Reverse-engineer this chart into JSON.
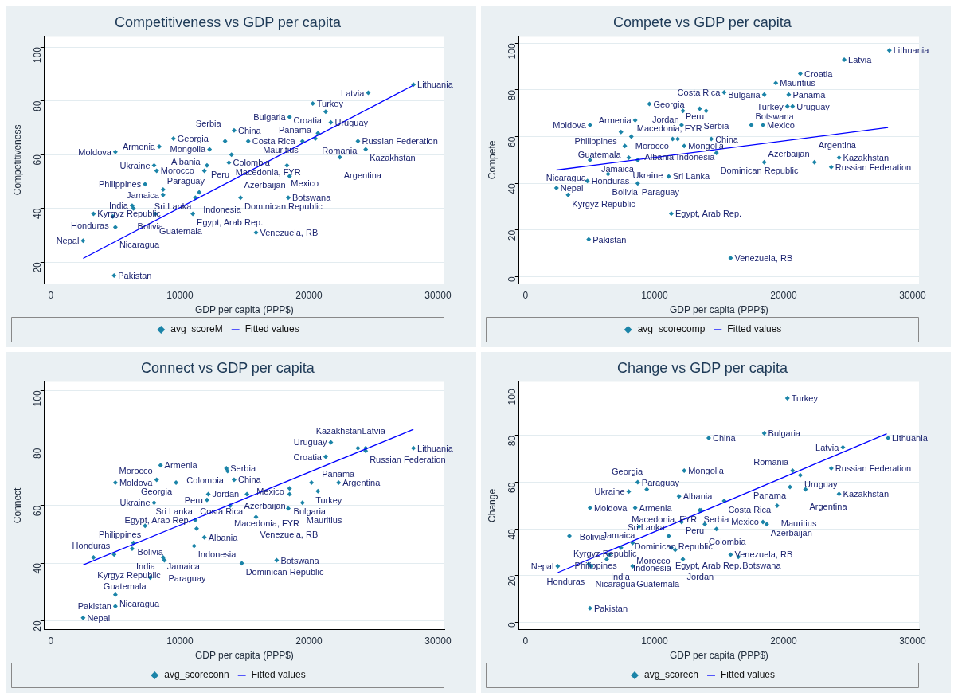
{
  "chart_data": [
    {
      "type": "scatter",
      "title": "Competitiveness vs GDP per capita",
      "xlabel": "GDP per capita (PPP$)",
      "ylabel": "Competitiveness",
      "xlim": [
        -500,
        30500
      ],
      "ylim": [
        12,
        104
      ],
      "xticks": [
        0,
        10000,
        20000,
        30000
      ],
      "yticks": [
        20,
        40,
        60,
        80,
        100
      ],
      "grid": "y",
      "legend": "bottom",
      "series": [
        {
          "name": "avg_scoreM",
          "color": "#1b84a8",
          "marker": "diamond",
          "x": [
            28100,
            24600,
            20300,
            21300,
            18500,
            21700,
            14200,
            20700,
            9500,
            13500,
            15300,
            20500,
            19500,
            23800,
            8400,
            5000,
            12300,
            24400,
            14000,
            22400,
            8000,
            12100,
            13800,
            18300,
            8200,
            11900,
            18500,
            7300,
            8700,
            11500,
            8700,
            11200,
            14700,
            18400,
            6300,
            6400,
            3300,
            4800,
            8100,
            11000,
            5000,
            15900,
            2500,
            4900
          ],
          "values": [
            86,
            83,
            79,
            76,
            74,
            72,
            69,
            68,
            66,
            65,
            65,
            66,
            65,
            65,
            63,
            61,
            62,
            62,
            60,
            59,
            56,
            56,
            57,
            56,
            54,
            54,
            52,
            49,
            47,
            46,
            45,
            44,
            44,
            44,
            41,
            40,
            38,
            37,
            38,
            38,
            33,
            31,
            28,
            15
          ],
          "value_labels": [
            "Lithuania",
            "Latvia",
            "Turkey",
            "Croatia",
            "Bulgaria",
            "Uruguay",
            "China",
            "Romania",
            "Georgia",
            "Serbia",
            "Costa Rica",
            "Panama",
            "Mauritius",
            "Russian Federation",
            "Armenia",
            "Moldova",
            "Mongolia",
            "Kazakhstan",
            "Macedonia, FYR",
            "Argentina",
            "Ukraine",
            "Peru",
            "Colombia",
            "Mexico",
            "Morocco",
            "Albania",
            "Azerbaijan",
            "Philippines",
            "Paraguay",
            "Indonesia",
            "Jamaica",
            "Sri Lanka",
            "Dominican Republic",
            "Botswana",
            "India",
            "Bolivia",
            "Kyrgyz Republic",
            "Honduras",
            "Guatemala",
            "Egypt, Arab Rep.",
            "Nicaragua",
            "Venezuela, RB",
            "Nepal",
            "Pakistan"
          ]
        },
        {
          "type": "line",
          "name": "Fitted values",
          "color": "#0000ff",
          "line_style": "solid",
          "x": [
            2500,
            28100
          ],
          "values": [
            21.4,
            85.8
          ]
        }
      ]
    },
    {
      "type": "scatter",
      "title": "Compete vs GDP per capita",
      "xlabel": "GDP per capita (PPP$)",
      "ylabel": "Compete",
      "xlim": [
        -500,
        30500
      ],
      "ylim": [
        -3,
        103
      ],
      "xticks": [
        0,
        10000,
        20000,
        30000
      ],
      "yticks": [
        0,
        20,
        40,
        60,
        80,
        100
      ],
      "grid": "y",
      "legend": "bottom",
      "series": [
        {
          "name": "avg_scorecomp",
          "color": "#1b84a8",
          "marker": "diamond",
          "x": [
            28200,
            24700,
            21300,
            19400,
            15400,
            18500,
            20400,
            9600,
            20300,
            20700,
            13500,
            12200,
            14000,
            8500,
            5000,
            12100,
            17500,
            18400,
            7400,
            8200,
            11400,
            14400,
            11800,
            7700,
            12300,
            14800,
            8000,
            5000,
            8700,
            18500,
            22400,
            24300,
            23700,
            6400,
            11100,
            4800,
            8700,
            2400,
            3300,
            11300,
            4900,
            15900
          ],
          "values": [
            97,
            93,
            87,
            83,
            79,
            78,
            78,
            74,
            73,
            73,
            72,
            71,
            71,
            67,
            65,
            65,
            65,
            65,
            62,
            60,
            59,
            59,
            59,
            56,
            56,
            53,
            51,
            50,
            50,
            49,
            49,
            51,
            47,
            44,
            43,
            41,
            40,
            38,
            35,
            27,
            16,
            8
          ],
          "value_labels": [
            "Lithuania",
            "Latvia",
            "Croatia",
            "Mauritius",
            "Costa Rica",
            "Bulgaria",
            "Panama",
            "Georgia",
            "Turkey",
            "Uruguay",
            "Serbia",
            "Jordan",
            "Macedonia, FYR",
            "Armenia",
            "Moldova",
            "Peru",
            "Botswana",
            "Mexico",
            "Philippines",
            "Morocco",
            "Indonesia",
            "China",
            "Albania",
            "Guatemala",
            "Mongolia",
            "Dominican Republic",
            "Ukraine",
            "Nicaragua",
            "Jamaica",
            "Azerbaijan",
            "Argentina",
            "Kazakhstan",
            "Russian Federation",
            "Bolivia",
            "Sri Lanka",
            "Honduras",
            "Paraguay",
            "Nepal",
            "Kyrgyz Republic",
            "Egypt, Arab Rep.",
            "Pakistan",
            "Venezuela, RB"
          ]
        },
        {
          "type": "line",
          "name": "Fitted values",
          "color": "#0000ff",
          "line_style": "solid",
          "x": [
            2400,
            28100
          ],
          "values": [
            45.7,
            63.9
          ]
        }
      ]
    },
    {
      "type": "scatter",
      "title": "Connect vs GDP per capita",
      "xlabel": "GDP per capita (PPP$)",
      "ylabel": "Connect",
      "xlim": [
        -500,
        30500
      ],
      "ylim": [
        17,
        103
      ],
      "xticks": [
        0,
        10000,
        20000,
        30000
      ],
      "yticks": [
        20,
        40,
        60,
        80,
        100
      ],
      "grid": "y",
      "legend": "bottom",
      "series": [
        {
          "name": "avg_scoreconn",
          "color": "#1b84a8",
          "marker": "diamond",
          "x": [
            21700,
            23800,
            24400,
            28100,
            24400,
            21300,
            8500,
            13600,
            13700,
            5000,
            8200,
            9700,
            14200,
            20200,
            22300,
            18500,
            20700,
            12200,
            12100,
            15200,
            18500,
            8000,
            13900,
            18400,
            19500,
            15900,
            11200,
            7300,
            11300,
            11900,
            6400,
            6300,
            4900,
            11100,
            3300,
            8700,
            8800,
            14800,
            17500,
            7700,
            5000,
            5000,
            2500
          ],
          "values": [
            82,
            80,
            79,
            80,
            80,
            77,
            74,
            73,
            72,
            68,
            69,
            68,
            69,
            68,
            68,
            66,
            65,
            64,
            62,
            64,
            64,
            61,
            60,
            59,
            61,
            56,
            55,
            53,
            52,
            49,
            47,
            45,
            43,
            46,
            42,
            42,
            41,
            40,
            41,
            35,
            29,
            25,
            21
          ],
          "value_labels": [
            "Uruguay",
            "Latvia",
            "Russian Federation",
            "Lithuania",
            "Kazakhstan",
            "Croatia",
            "Armenia",
            "Serbia",
            "Colombia",
            "Moldova",
            "Morocco",
            "Georgia",
            "China",
            "Turkey",
            "Argentina",
            "Azerbaijan",
            "Panama",
            "Jordan",
            "Peru",
            "Costa Rica",
            "Bulgaria",
            "Ukraine",
            "Macedonia, FYR",
            "Mexico",
            "Mauritius",
            "Venezuela, RB",
            "Egypt, Arab Rep.",
            "Philippines",
            "Sri Lanka",
            "Albania",
            "Bolivia",
            "India",
            "Honduras",
            "Indonesia",
            "Kyrgyz Republic",
            "Jamaica",
            "Paraguay",
            "Dominican Republic",
            "Botswana",
            "Guatemala",
            "Nicaragua",
            "Pakistan",
            "Nepal"
          ]
        },
        {
          "type": "line",
          "name": "Fitted values",
          "color": "#0000ff",
          "line_style": "solid",
          "x": [
            2500,
            28100
          ],
          "values": [
            39.4,
            86.5
          ]
        }
      ]
    },
    {
      "type": "scatter",
      "title": "Change vs GDP per capita",
      "xlabel": "GDP per capita (PPP$)",
      "ylabel": "Change",
      "xlim": [
        -500,
        30500
      ],
      "ylim": [
        -3,
        103
      ],
      "xticks": [
        0,
        10000,
        20000,
        30000
      ],
      "yticks": [
        0,
        20,
        40,
        60,
        80,
        100
      ],
      "grid": "y",
      "legend": "bottom",
      "series": [
        {
          "name": "avg_scorech",
          "color": "#1b84a8",
          "marker": "diamond",
          "x": [
            20300,
            18500,
            14200,
            28100,
            24600,
            23700,
            12300,
            20700,
            21300,
            8700,
            20500,
            21700,
            24300,
            8000,
            9400,
            11900,
            15400,
            19500,
            5000,
            8500,
            13600,
            13500,
            8800,
            12100,
            13900,
            18400,
            18700,
            14800,
            3400,
            11100,
            8300,
            11300,
            11600,
            7400,
            6500,
            6300,
            12200,
            15900,
            16500,
            4900,
            2500,
            8300,
            5100,
            5000
          ],
          "values": [
            96,
            81,
            79,
            79,
            75,
            66,
            65,
            65,
            63,
            60,
            58,
            57,
            55,
            56,
            57,
            54,
            52,
            50,
            49,
            49,
            48,
            48,
            41,
            43,
            42,
            43,
            42,
            40,
            37,
            37,
            34,
            32,
            31,
            32,
            29,
            27,
            27,
            29,
            28,
            25,
            24,
            24,
            24,
            6
          ],
          "value_labels": [
            "Turkey",
            "Bulgaria",
            "China",
            "Lithuania",
            "Latvia",
            "Russian Federation",
            "Mongolia",
            "Romania",
            "Uruguay",
            "Paraguay",
            "Panama",
            "Argentina",
            "Kazakhstan",
            "Ukraine",
            "Georgia",
            "Albania",
            "Costa Rica",
            "Mauritius",
            "Moldova",
            "Armenia",
            "Macedonia, FYR",
            "Serbia",
            "Jamaica",
            "Peru",
            "Colombia",
            "Mexico",
            "Azerbaijan",
            "Dominican Republic",
            "Kyrgyz Republic",
            "Sri Lanka",
            "Morocco",
            "Egypt, Arab Rep.",
            "Indonesia",
            "Philippines",
            "Bolivia",
            "India",
            "Jordan",
            "Venezuela, RB",
            "Botswana",
            "Honduras",
            "Nepal",
            "Guatemala",
            "Nicaragua",
            "Pakistan"
          ]
        },
        {
          "type": "line",
          "name": "Fitted values",
          "color": "#0000ff",
          "line_style": "solid",
          "x": [
            2500,
            28000
          ],
          "values": [
            21.3,
            80.8
          ]
        }
      ]
    }
  ]
}
